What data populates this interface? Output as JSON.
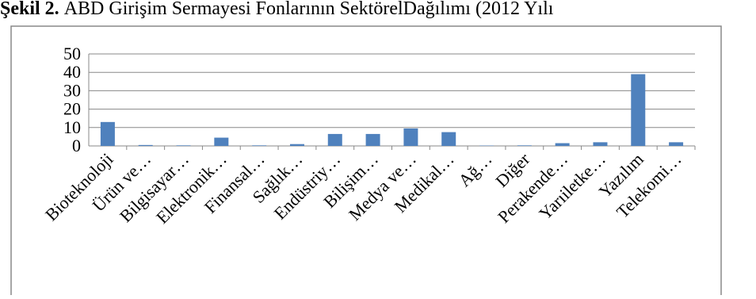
{
  "chart_data": {
    "type": "bar",
    "figure_label": "Şekil 2.",
    "title": "ABD Girişim Sermayesi Fonlarının SektörelDağılımı (2012 Yılı",
    "categories": [
      "Bioteknoloji",
      "Ürün ve…",
      "Bilgisayar…",
      "Elektronik…",
      "Finansal…",
      "Sağlık…",
      "Endüstriy…",
      "Bilişim…",
      "Medya ve…",
      "Medikal…",
      "Ağ…",
      "Diğer",
      "Perakende…",
      "Yarıiletke…",
      "Yazılım",
      "Telekomi…"
    ],
    "values": [
      13,
      0.5,
      0.3,
      4.5,
      0.3,
      1,
      6.5,
      6.5,
      9.5,
      7.5,
      0.2,
      0.3,
      1.5,
      2,
      39,
      2
    ],
    "color": "#4f81bd",
    "ylim": [
      0,
      50
    ],
    "yticks": [
      0,
      10,
      20,
      30,
      40,
      50
    ],
    "grid": true
  }
}
